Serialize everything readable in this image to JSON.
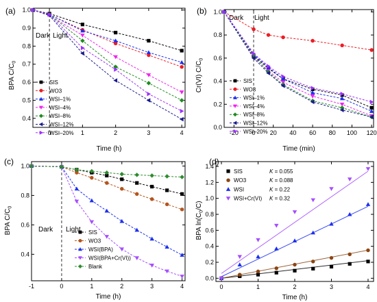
{
  "chart_data": [
    {
      "panel_label": "(a)",
      "type": "line",
      "xlabel": "Time (h)",
      "ylabel_main": "BPA C/C",
      "ylabel_sub": "0",
      "xlim": [
        -0.5,
        4.1
      ],
      "ylim": [
        0.35,
        1.01
      ],
      "xticks": [
        0,
        1,
        2,
        3,
        4
      ],
      "yticks": [
        0.4,
        0.5,
        0.6,
        0.7,
        0.8,
        0.9,
        1.0
      ],
      "ytick_labels": [
        "0.4",
        "0.5",
        "0.6",
        "0.7",
        "0.8",
        "0.9",
        "1.0"
      ],
      "divider_x": 0,
      "annotations": [
        "Dark",
        "Light"
      ],
      "legend_position": "bottom-left",
      "series": [
        {
          "name": "SIS",
          "color": "#000000",
          "marker": "square",
          "x": [
            -0.5,
            0,
            1,
            2,
            3,
            4
          ],
          "values": [
            1.0,
            0.98,
            0.92,
            0.875,
            0.83,
            0.775
          ]
        },
        {
          "name": "WO3",
          "color": "#ee1c24",
          "marker": "circle",
          "x": [
            -0.5,
            0,
            1,
            2,
            3,
            4
          ],
          "values": [
            1.0,
            0.975,
            0.89,
            0.815,
            0.75,
            0.685
          ]
        },
        {
          "name": "WSI–1%",
          "color": "#1c2fee",
          "marker": "triangle-up",
          "x": [
            -0.5,
            0,
            1,
            2,
            3,
            4
          ],
          "values": [
            1.0,
            0.975,
            0.885,
            0.83,
            0.765,
            0.71
          ]
        },
        {
          "name": "WSI–4%",
          "color": "#ee22ee",
          "marker": "triangle-down",
          "x": [
            -0.5,
            0,
            1,
            2,
            3,
            4
          ],
          "values": [
            1.0,
            0.97,
            0.86,
            0.74,
            0.64,
            0.545
          ]
        },
        {
          "name": "WSI–8%",
          "color": "#1f8a1f",
          "marker": "diamond",
          "x": [
            -0.5,
            0,
            1,
            2,
            3,
            4
          ],
          "values": [
            1.0,
            0.975,
            0.83,
            0.685,
            0.595,
            0.5
          ]
        },
        {
          "name": "WSI–12%",
          "color": "#1a1a8c",
          "marker": "triangle-left",
          "x": [
            -0.5,
            0,
            1,
            2,
            3,
            4
          ],
          "values": [
            1.0,
            0.97,
            0.76,
            0.61,
            0.5,
            0.395
          ]
        },
        {
          "name": "WSI–20%",
          "color": "#9b30ff",
          "marker": "triangle-right",
          "x": [
            -0.5,
            0,
            1,
            2,
            3,
            4
          ],
          "values": [
            1.0,
            0.975,
            0.79,
            0.67,
            0.535,
            0.44
          ]
        }
      ]
    },
    {
      "panel_label": "(b)",
      "type": "line",
      "xlabel": "Time (min)",
      "ylabel_main": "Cr(VI) C/C",
      "ylabel_sub": "0",
      "xlim": [
        -30,
        122
      ],
      "ylim": [
        0,
        1.02
      ],
      "xticks": [
        -20,
        0,
        20,
        40,
        60,
        80,
        100,
        120
      ],
      "yticks": [
        0,
        0.2,
        0.4,
        0.6,
        0.8,
        1.0
      ],
      "ytick_labels": [
        "0.0",
        "0.2",
        "0.4",
        "0.6",
        "0.8",
        "1.0"
      ],
      "divider_x": 0,
      "annotations": [
        "Dark",
        "Light"
      ],
      "legend_position": "bottom-left",
      "series": [
        {
          "name": "SIS",
          "color": "#000000",
          "marker": "square",
          "x": [
            -30,
            0,
            15,
            30,
            60,
            90,
            120
          ],
          "values": [
            1.0,
            0.62,
            0.51,
            0.42,
            0.33,
            0.28,
            0.17
          ]
        },
        {
          "name": "WO3",
          "color": "#ee1c24",
          "marker": "circle",
          "x": [
            -30,
            0,
            15,
            30,
            60,
            90,
            120
          ],
          "values": [
            1.0,
            0.85,
            0.8,
            0.78,
            0.75,
            0.71,
            0.67
          ]
        },
        {
          "name": "WSI–1%",
          "color": "#1c2fee",
          "marker": "triangle-up",
          "x": [
            -30,
            0,
            15,
            30,
            60,
            90,
            120
          ],
          "values": [
            1.0,
            0.63,
            0.52,
            0.42,
            0.3,
            0.25,
            0.14
          ]
        },
        {
          "name": "WSI–4%",
          "color": "#ee22ee",
          "marker": "triangle-down",
          "x": [
            -30,
            0,
            15,
            30,
            60,
            90,
            120
          ],
          "values": [
            1.0,
            0.61,
            0.49,
            0.39,
            0.27,
            0.2,
            0.1
          ]
        },
        {
          "name": "WSI–8%",
          "color": "#1f8a1f",
          "marker": "diamond",
          "x": [
            -30,
            0,
            15,
            30,
            60,
            90,
            120
          ],
          "values": [
            1.0,
            0.62,
            0.48,
            0.37,
            0.23,
            0.17,
            0.09
          ]
        },
        {
          "name": "WSI–12%",
          "color": "#1a1a8c",
          "marker": "triangle-left",
          "x": [
            -30,
            0,
            15,
            30,
            60,
            90,
            120
          ],
          "values": [
            1.0,
            0.6,
            0.47,
            0.36,
            0.22,
            0.15,
            0.09
          ]
        },
        {
          "name": "WSI–20%",
          "color": "#9b30ff",
          "marker": "triangle-right",
          "x": [
            -30,
            0,
            15,
            30,
            60,
            90,
            120
          ],
          "values": [
            1.0,
            0.64,
            0.53,
            0.44,
            0.34,
            0.29,
            0.22
          ]
        }
      ]
    },
    {
      "panel_label": "(c)",
      "type": "line",
      "xlabel": "Time (h)",
      "ylabel_main": "BPA C/C",
      "ylabel_sub": "0",
      "xlim": [
        -1,
        4.1
      ],
      "ylim": [
        0.22,
        1.03
      ],
      "xticks": [
        -1,
        0,
        1,
        2,
        3,
        4
      ],
      "yticks": [
        0.4,
        0.6,
        0.8,
        1.0
      ],
      "ytick_labels": [
        "0.4",
        "0.6",
        "0.8",
        "1.0"
      ],
      "divider_x": 0,
      "annotations": [
        "Dark",
        "Light"
      ],
      "legend_position": "bottom-center",
      "series": [
        {
          "name": "SIS",
          "color": "#000000",
          "marker": "square",
          "x": [
            -1,
            0,
            0.5,
            1,
            1.5,
            2,
            2.5,
            3,
            3.5,
            4
          ],
          "values": [
            1.0,
            0.995,
            0.975,
            0.955,
            0.935,
            0.91,
            0.885,
            0.86,
            0.835,
            0.81
          ]
        },
        {
          "name": "WO3",
          "color": "#b5541c",
          "marker": "circle",
          "x": [
            -1,
            0,
            0.5,
            1,
            1.5,
            2,
            2.5,
            3,
            3.5,
            4
          ],
          "values": [
            1.0,
            0.995,
            0.955,
            0.92,
            0.885,
            0.845,
            0.81,
            0.775,
            0.74,
            0.705
          ]
        },
        {
          "name": "WSI(BPA)",
          "color": "#1c2fee",
          "marker": "triangle-up",
          "x": [
            -1,
            0,
            0.5,
            1,
            1.5,
            2,
            2.5,
            3,
            3.5,
            4
          ],
          "values": [
            1.0,
            0.995,
            0.845,
            0.765,
            0.695,
            0.625,
            0.565,
            0.505,
            0.45,
            0.395
          ]
        },
        {
          "name": "WSI(BPA+Cr(VI))",
          "color": "#a64dff",
          "marker": "triangle-down",
          "x": [
            -1,
            0,
            0.5,
            1,
            1.5,
            2,
            2.5,
            3,
            3.5,
            4
          ],
          "values": [
            1.0,
            0.995,
            0.76,
            0.62,
            0.52,
            0.435,
            0.375,
            0.325,
            0.285,
            0.25
          ]
        },
        {
          "name": "Blank",
          "color": "#2e8b2e",
          "marker": "diamond",
          "x": [
            -1,
            0,
            0.5,
            1,
            1.5,
            2,
            2.5,
            3,
            3.5,
            4
          ],
          "values": [
            1.0,
            0.995,
            0.975,
            0.965,
            0.955,
            0.945,
            0.94,
            0.935,
            0.93,
            0.925
          ]
        }
      ]
    },
    {
      "panel_label": "(d)",
      "type": "scatter",
      "xlabel": "Time (h)",
      "ylabel_main": "BPA ln(C",
      "ylabel_sub1": "0",
      "ylabel_mid": "/C)",
      "xlim": [
        -0.15,
        4.15
      ],
      "ylim": [
        -0.04,
        1.46
      ],
      "xticks": [
        0,
        1,
        2,
        3,
        4
      ],
      "yticks": [
        0.0,
        0.2,
        0.4,
        0.6,
        0.8,
        1.0,
        1.2,
        1.4
      ],
      "ytick_labels": [
        "0.0",
        "0.2",
        "0.4",
        "0.6",
        "0.8",
        "1.0",
        "1.2",
        "1.4"
      ],
      "legend_position": "top-left",
      "k_symbol": "K",
      "series": [
        {
          "name": "SIS",
          "k_label": "= 0.055",
          "color": "#000000",
          "marker": "square",
          "x": [
            0,
            0.5,
            1,
            1.5,
            2,
            2.5,
            3,
            3.5,
            4
          ],
          "values": [
            0.0,
            0.025,
            0.045,
            0.07,
            0.095,
            0.12,
            0.145,
            0.18,
            0.21
          ],
          "fit": [
            0,
            0.055
          ]
        },
        {
          "name": "WO3",
          "k_label": "= 0.088",
          "color": "#8b4513",
          "marker": "circle",
          "x": [
            0,
            0.5,
            1,
            1.5,
            2,
            2.5,
            3,
            3.5,
            4
          ],
          "values": [
            0.0,
            0.045,
            0.085,
            0.125,
            0.17,
            0.21,
            0.255,
            0.3,
            0.35
          ],
          "fit": [
            0,
            0.088
          ]
        },
        {
          "name": "WSI",
          "k_label": "= 0.22",
          "color": "#1c2fee",
          "marker": "triangle-up",
          "x": [
            0,
            0.5,
            1,
            1.5,
            2,
            2.5,
            3,
            3.5,
            4
          ],
          "values": [
            0.0,
            0.17,
            0.27,
            0.37,
            0.47,
            0.57,
            0.68,
            0.8,
            0.925
          ],
          "fit": [
            0.02,
            0.22
          ]
        },
        {
          "name": "WSI+Cr(VI)",
          "k_label": "= 0.32",
          "color": "#a64dff",
          "marker": "triangle-down",
          "x": [
            0,
            0.5,
            1,
            1.5,
            2,
            2.5,
            3,
            3.5,
            4
          ],
          "values": [
            0.0,
            0.27,
            0.48,
            0.66,
            0.83,
            0.98,
            1.12,
            1.24,
            1.37
          ],
          "fit": [
            0.06,
            0.32
          ]
        }
      ]
    }
  ]
}
